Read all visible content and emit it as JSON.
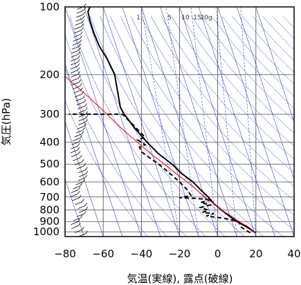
{
  "chart_data": {
    "type": "line",
    "xlabel": "気温(実線), 露点(破線)",
    "ylabel": "気圧(hPa)",
    "xlim": [
      -80,
      40
    ],
    "ylim": [
      1050,
      100
    ],
    "y_scale": "log",
    "x_ticks": [
      -80,
      -60,
      -40,
      -20,
      0,
      20,
      40
    ],
    "y_ticks": [
      100,
      200,
      300,
      400,
      500,
      600,
      700,
      800,
      900,
      1000
    ],
    "y_tick_labels": [
      "100",
      "200",
      "300",
      "400",
      "500",
      "600",
      "700",
      "800",
      "900",
      "1000"
    ],
    "grid": true,
    "colors": {
      "temperature": "#000000",
      "dewpoint": "#000000",
      "parcel": "#ff0000",
      "reference_lines": "#3344cc"
    },
    "mixing_ratio_labels": [
      "1",
      "5",
      "10",
      "15",
      "20g"
    ],
    "mixing_ratio_values": [
      1,
      5,
      10,
      15,
      20
    ],
    "series": [
      {
        "role": "temperature",
        "style": "solid",
        "points": [
          [
            20,
            1010
          ],
          [
            15,
            950
          ],
          [
            10,
            900
          ],
          [
            6,
            850
          ],
          [
            2,
            800
          ],
          [
            -2,
            750
          ],
          [
            -5,
            700
          ],
          [
            -9,
            650
          ],
          [
            -13,
            600
          ],
          [
            -19,
            550
          ],
          [
            -24,
            500
          ],
          [
            -31,
            450
          ],
          [
            -37,
            400
          ],
          [
            -43,
            350
          ],
          [
            -49,
            300
          ],
          [
            -51,
            280
          ],
          [
            -52,
            250
          ],
          [
            -54,
            200
          ],
          [
            -58,
            170
          ],
          [
            -62,
            150
          ],
          [
            -65,
            130
          ],
          [
            -67,
            115
          ],
          [
            -68,
            105
          ],
          [
            -67,
            100
          ]
        ]
      },
      {
        "role": "dewpoint",
        "style": "dashed",
        "points": [
          [
            17,
            1010
          ],
          [
            12,
            950
          ],
          [
            11,
            900
          ],
          [
            3,
            870
          ],
          [
            -6,
            850
          ],
          [
            -2,
            830
          ],
          [
            -8,
            820
          ],
          [
            -5,
            800
          ],
          [
            -9,
            780
          ],
          [
            -4,
            760
          ],
          [
            -9,
            740
          ],
          [
            -3,
            720
          ],
          [
            -12,
            710
          ],
          [
            -20,
            705
          ],
          [
            -14,
            690
          ],
          [
            -16,
            650
          ],
          [
            -20,
            600
          ],
          [
            -25,
            550
          ],
          [
            -31,
            500
          ],
          [
            -37,
            460
          ],
          [
            -40,
            440
          ],
          [
            -41,
            420
          ],
          [
            -38,
            410
          ],
          [
            -40,
            400
          ],
          [
            -42,
            390
          ],
          [
            -38,
            380
          ],
          [
            -45,
            330
          ],
          [
            -50,
            300
          ],
          [
            -78,
            300
          ]
        ]
      },
      {
        "role": "parcel",
        "style": "solid",
        "points": [
          [
            20,
            1010
          ],
          [
            16,
            950
          ],
          [
            11,
            900
          ],
          [
            7,
            850
          ],
          [
            2,
            800
          ],
          [
            -2,
            750
          ],
          [
            -7,
            700
          ],
          [
            -11,
            650
          ],
          [
            -16,
            600
          ],
          [
            -22,
            550
          ],
          [
            -28,
            500
          ],
          [
            -35,
            450
          ],
          [
            -42,
            400
          ],
          [
            -50,
            350
          ],
          [
            -58,
            300
          ],
          [
            -68,
            250
          ],
          [
            -81,
            200
          ]
        ]
      }
    ],
    "wind_barbs_note": "wind barbs drawn along left edge"
  }
}
